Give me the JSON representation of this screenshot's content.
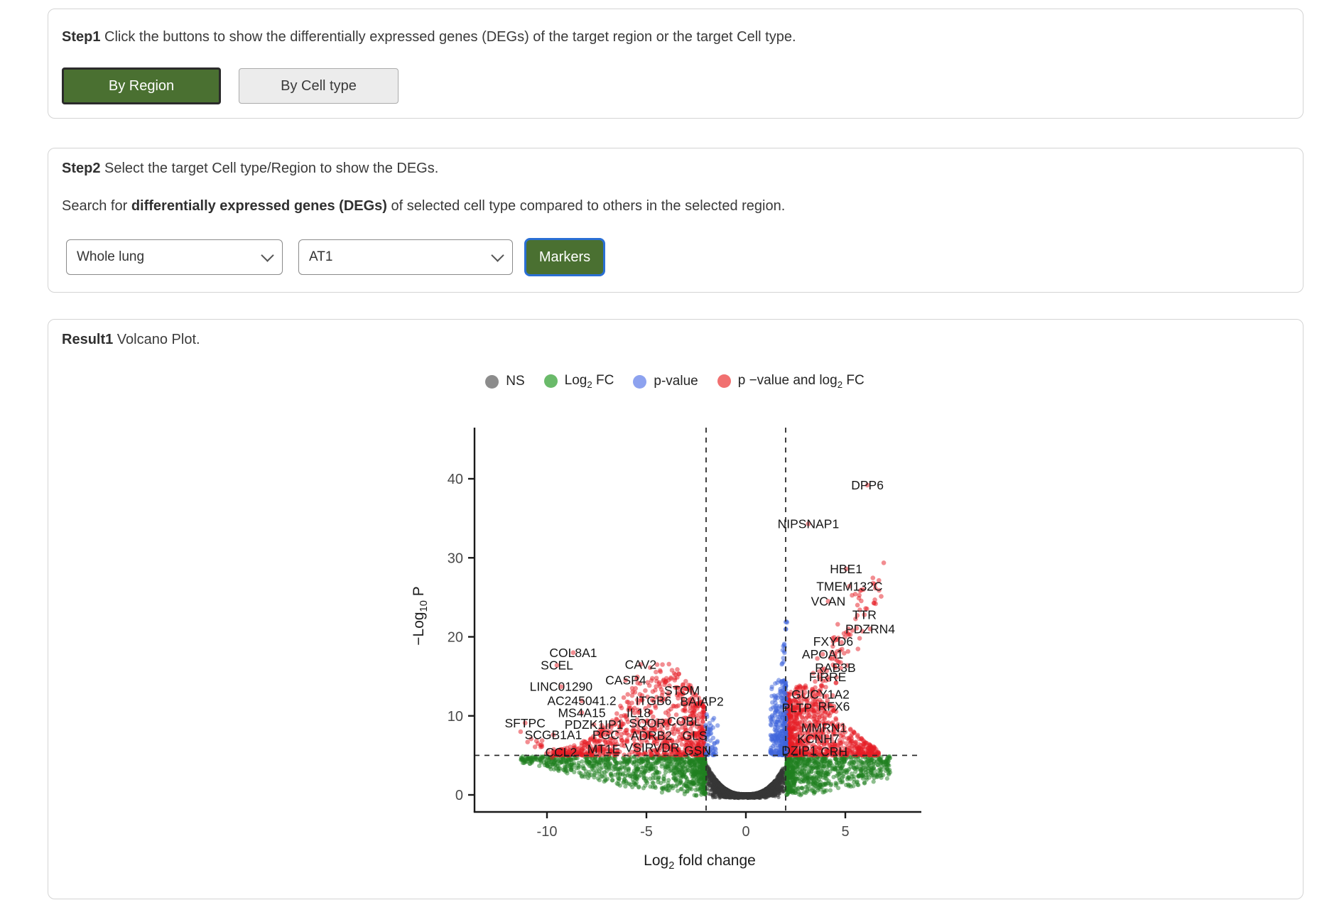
{
  "step1_panel": {
    "title_parts": [
      {
        "t": "Step1",
        "b": true
      },
      {
        "t": " Click the buttons to show the differentially expressed genes (DEGs) of the target region or the target Cell type."
      }
    ],
    "buttons": {
      "by_region": {
        "label": "By Region",
        "active": true
      },
      "by_cell_type": {
        "label": "By Cell type",
        "active": false
      }
    },
    "active_color": "#4a7031"
  },
  "step2_panel": {
    "title_parts": [
      {
        "t": "Step2",
        "b": true
      },
      {
        "t": " Select the target Cell type/Region to show the DEGs."
      }
    ],
    "subtitle_parts": [
      {
        "t": "Search for "
      },
      {
        "t": "differentially expressed genes (DEGs)",
        "b": true
      },
      {
        "t": " of selected cell type compared to others in the selected region."
      }
    ],
    "region_select": {
      "value": "Whole lung"
    },
    "celltype_select": {
      "value": "AT1"
    },
    "markers_button": {
      "label": "Markers"
    }
  },
  "result_panel": {
    "title_parts": [
      {
        "t": "Result1",
        "b": true
      },
      {
        "t": " Volcano Plot."
      }
    ]
  },
  "chart_data": {
    "type": "scatter",
    "variant": "volcano",
    "title": "",
    "xlabel": "Log2 fold change",
    "ylabel": "-Log10 P",
    "xlabel_parts": [
      {
        "t": "Log"
      },
      {
        "t": "2",
        "sub": true
      },
      {
        "t": " fold change"
      }
    ],
    "ylabel_parts": [
      {
        "t": "−Log"
      },
      {
        "t": "10",
        "sub": true
      },
      {
        "t": " P"
      }
    ],
    "x_ticks": [
      -10,
      -5,
      0,
      5
    ],
    "y_ticks": [
      0,
      10,
      20,
      30,
      40
    ],
    "xlim": [
      -13.6,
      8.8
    ],
    "ylim": [
      -1.6,
      46.8
    ],
    "grid": false,
    "legend_position": "top",
    "thresholds": {
      "log2fc": [
        -2,
        2
      ],
      "neglog10p": 5
    },
    "legend": [
      {
        "parts": [
          {
            "t": "NS"
          }
        ],
        "color": "#8c8c8c"
      },
      {
        "parts": [
          {
            "t": "Log"
          },
          {
            "t": "2",
            "sub": true
          },
          {
            "t": " FC"
          }
        ],
        "color": "#6aba6a"
      },
      {
        "parts": [
          {
            "t": "p-value"
          }
        ],
        "color": "#8da2ef"
      },
      {
        "parts": [
          {
            "t": "p −value and log"
          },
          {
            "t": "2",
            "sub": true
          },
          {
            "t": " FC"
          }
        ],
        "color": "#f17070"
      }
    ],
    "colors": {
      "ns": "rgba(55,55,55,0.55)",
      "fc": "rgba(32,128,32,0.5)",
      "p": "rgba(62,100,220,0.5)",
      "both": "rgba(230,28,36,0.5)"
    },
    "labeled_genes": [
      {
        "name": "DPP6",
        "x": 6.11,
        "y": 39.2
      },
      {
        "name": "NIPSNAP1",
        "x": 3.14,
        "y": 34.3
      },
      {
        "name": "HBE1",
        "x": 5.04,
        "y": 28.6
      },
      {
        "name": "TMEM132C",
        "x": 5.21,
        "y": 26.4
      },
      {
        "name": "VCAN",
        "x": 4.14,
        "y": 24.5
      },
      {
        "name": "TTR",
        "x": 5.96,
        "y": 22.8
      },
      {
        "name": "PDZRN4",
        "x": 6.25,
        "y": 21.0
      },
      {
        "name": "FXYD6",
        "x": 4.39,
        "y": 19.4
      },
      {
        "name": "APOA1",
        "x": 3.86,
        "y": 17.8
      },
      {
        "name": "RAB3B",
        "x": 4.5,
        "y": 16.1
      },
      {
        "name": "FIRRE",
        "x": 4.11,
        "y": 14.9
      },
      {
        "name": "GUCY1A2",
        "x": 3.75,
        "y": 12.7
      },
      {
        "name": "PLTP",
        "x": 2.57,
        "y": 11.0
      },
      {
        "name": "RFX6",
        "x": 4.43,
        "y": 11.2
      },
      {
        "name": "MMRN1",
        "x": 3.93,
        "y": 8.5
      },
      {
        "name": "KCNH7",
        "x": 3.64,
        "y": 7.1
      },
      {
        "name": "DZIP1",
        "x": 2.68,
        "y": 5.6
      },
      {
        "name": "CRH",
        "x": 4.43,
        "y": 5.5
      },
      {
        "name": "COL8A1",
        "x": -8.68,
        "y": 18.0
      },
      {
        "name": "SCEL",
        "x": -9.5,
        "y": 16.4
      },
      {
        "name": "CAV2",
        "x": -5.29,
        "y": 16.5
      },
      {
        "name": "LINC01290",
        "x": -9.29,
        "y": 13.7
      },
      {
        "name": "CASP4",
        "x": -6.04,
        "y": 14.5
      },
      {
        "name": "STOM",
        "x": -3.21,
        "y": 13.2
      },
      {
        "name": "AC245041.2",
        "x": -8.25,
        "y": 11.9
      },
      {
        "name": "ITGB6",
        "x": -4.64,
        "y": 11.9
      },
      {
        "name": "BAIAP2",
        "x": -2.21,
        "y": 11.8
      },
      {
        "name": "MS4A15",
        "x": -8.25,
        "y": 10.4
      },
      {
        "name": "IL18",
        "x": -5.39,
        "y": 10.4
      },
      {
        "name": "SFTPC",
        "x": -11.1,
        "y": 9.1
      },
      {
        "name": "PDZK1IP1",
        "x": -7.64,
        "y": 8.9
      },
      {
        "name": "SQOR",
        "x": -4.96,
        "y": 9.1
      },
      {
        "name": "COBL",
        "x": -3.11,
        "y": 9.3
      },
      {
        "name": "SCGB1A1",
        "x": -9.68,
        "y": 7.6
      },
      {
        "name": "PGC",
        "x": -7.04,
        "y": 7.6
      },
      {
        "name": "ADRB2",
        "x": -4.75,
        "y": 7.5
      },
      {
        "name": "GLS",
        "x": -2.57,
        "y": 7.5
      },
      {
        "name": "CCL2",
        "x": -9.29,
        "y": 5.4
      },
      {
        "name": "MT1E",
        "x": -7.14,
        "y": 5.8
      },
      {
        "name": "VSIR",
        "x": -5.36,
        "y": 6.0
      },
      {
        "name": "VDR",
        "x": -4.0,
        "y": 6.0
      },
      {
        "name": "GSN",
        "x": -2.43,
        "y": 5.6
      }
    ],
    "clouds": [
      {
        "kind": "ns",
        "n": 4200,
        "seed": 11,
        "color": "ns",
        "r": 2.6,
        "xmax": 2.15,
        "ytop_base": 0.12,
        "ytop_amp": 4.82,
        "ytop_exp": 2.6,
        "ymin": -0.42,
        "ypow": 0.5,
        "ycap": 4.94
      },
      {
        "kind": "flank",
        "n": 950,
        "seed": 22,
        "color": "fc",
        "r": 3.1,
        "side": -1,
        "x0": 2.05,
        "spread": 9.3,
        "xexp": 1.9,
        "ylo_k": 0.16,
        "ylo_exp": 1.5,
        "ylo_off": -0.3,
        "ytop": 4.88,
        "ypow": 0.7
      },
      {
        "kind": "flank",
        "n": 750,
        "seed": 33,
        "color": "fc",
        "r": 3.1,
        "side": 1,
        "x0": 2.05,
        "spread": 5.2,
        "xexp": 2.0,
        "ylo_k": 0.2,
        "ylo_exp": 1.5,
        "ylo_off": -0.3,
        "ytop": 4.88,
        "ypow": 0.7
      },
      {
        "kind": "sig",
        "n": 800,
        "seed": 44,
        "color": "both",
        "r": 3.3,
        "side": -1,
        "x0": 2.1,
        "spread": 7.6,
        "xexp": 1.65,
        "peak_x": -4.3,
        "peak_h": 11.6,
        "peak_w": 7.2,
        "ybase": 5.02,
        "ypow": 1.55
      },
      {
        "kind": "sig",
        "n": 760,
        "seed": 55,
        "color": "both",
        "r": 3.3,
        "side": 1,
        "x0": 2.08,
        "spread": 4.6,
        "xexp": 2.1,
        "peak_x": 2.9,
        "peak_h": 8.5,
        "peak_w": 5.5,
        "ybase": 5.02,
        "ypow": 1.6
      },
      {
        "kind": "band",
        "n": 120,
        "seed": 66,
        "color": "both",
        "r": 3.3,
        "x_from": 3.1,
        "x_len": 3.4,
        "xj": 1.0,
        "y_from": 9.5,
        "y_len": 18.5,
        "yj": 5
      },
      {
        "kind": "band",
        "n": 18,
        "seed": 77,
        "color": "both",
        "r": 3.3,
        "x_from": -9.5,
        "x_len": -1.8,
        "xj": 0.4,
        "y_from": 5.2,
        "y_len": 2.4,
        "yj": 1.4
      },
      {
        "kind": "wedge",
        "n": 300,
        "seed": 88,
        "color": "p",
        "r": 3.2,
        "x_edge": 2.02,
        "x_spread": -0.8,
        "xexp": 1.9,
        "ybase": 5.05,
        "yspread": 9.5,
        "ypow": 1.7
      },
      {
        "kind": "wedge",
        "n": 55,
        "seed": 99,
        "color": "p",
        "r": 3.2,
        "x_edge": -2.02,
        "x_spread": 0.6,
        "xexp": 1.6,
        "ybase": 5.05,
        "yspread": 5.2,
        "ypow": 1.8
      },
      {
        "kind": "band",
        "n": 18,
        "seed": 111,
        "color": "p",
        "r": 3.2,
        "x_from": 1.78,
        "x_len": 0.26,
        "xj": 0.1,
        "y_from": 14.5,
        "y_len": 8,
        "yj": 1.5
      }
    ]
  }
}
